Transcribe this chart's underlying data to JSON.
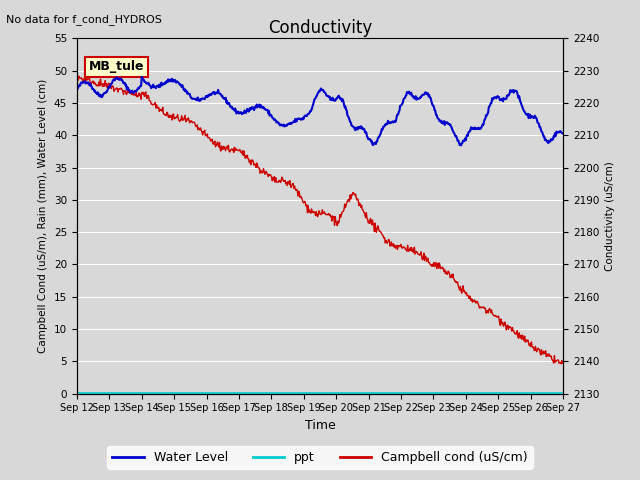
{
  "title": "Conductivity",
  "top_left_text": "No data for f_cond_HYDROS",
  "ylabel_left": "Campbell Cond (uS/m), Rain (mm), Water Level (cm)",
  "ylabel_right": "Conductivity (uS/cm)",
  "xlabel": "Time",
  "ylim_left": [
    0,
    55
  ],
  "ylim_right": [
    2130,
    2240
  ],
  "x_tick_labels": [
    "Sep 12",
    "Sep 13",
    "Sep 14",
    "Sep 15",
    "Sep 16",
    "Sep 17",
    "Sep 18",
    "Sep 19",
    "Sep 20",
    "Sep 21",
    "Sep 22",
    "Sep 23",
    "Sep 24",
    "Sep 25",
    "Sep 26",
    "Sep 27"
  ],
  "background_color": "#d8d8d8",
  "plot_bg_color": "#d8d8d8",
  "legend_entries": [
    "Water Level",
    "ppt",
    "Campbell cond (uS/cm)"
  ],
  "legend_colors": [
    "#0000cc",
    "#00cccc",
    "#cc0000"
  ],
  "annotation_box": {
    "text": "MB_tule",
    "bg": "#ffffcc",
    "border": "#cc0000"
  },
  "water_level_color": "#0000cc",
  "ppt_color": "#00cccc",
  "campbell_color": "#cc0000",
  "grid_color": "#ffffff"
}
